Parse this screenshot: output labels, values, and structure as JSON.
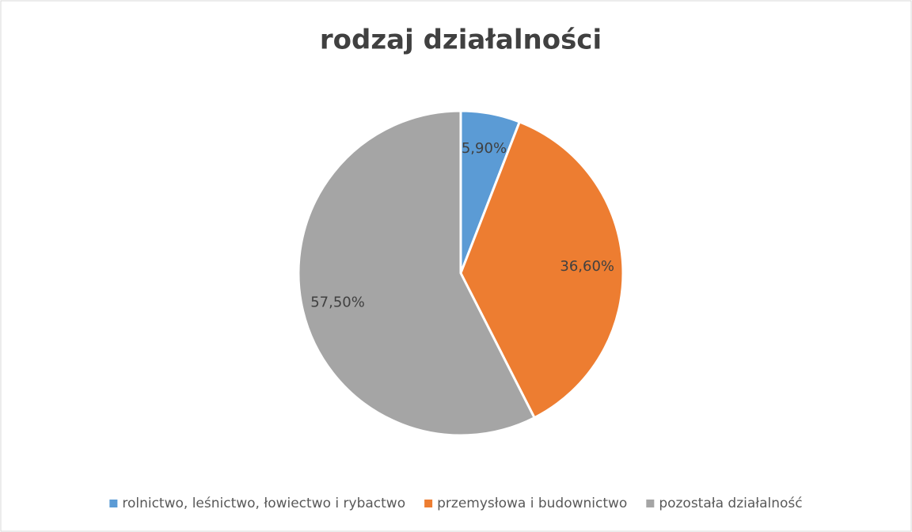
{
  "chart_data": {
    "type": "pie",
    "title": "rodzaj działalności",
    "categories": [
      "rolnictwo, leśnictwo, łowiectwo i rybactwo",
      "przemysłowa i budownictwo",
      "pozostała działalność"
    ],
    "values": [
      5.9,
      36.6,
      57.5
    ],
    "value_labels": [
      "5,90%",
      "36,60%",
      "57,50%"
    ],
    "colors": [
      "#5b9bd5",
      "#ed7d31",
      "#a5a5a5"
    ],
    "legend": "bottom"
  }
}
